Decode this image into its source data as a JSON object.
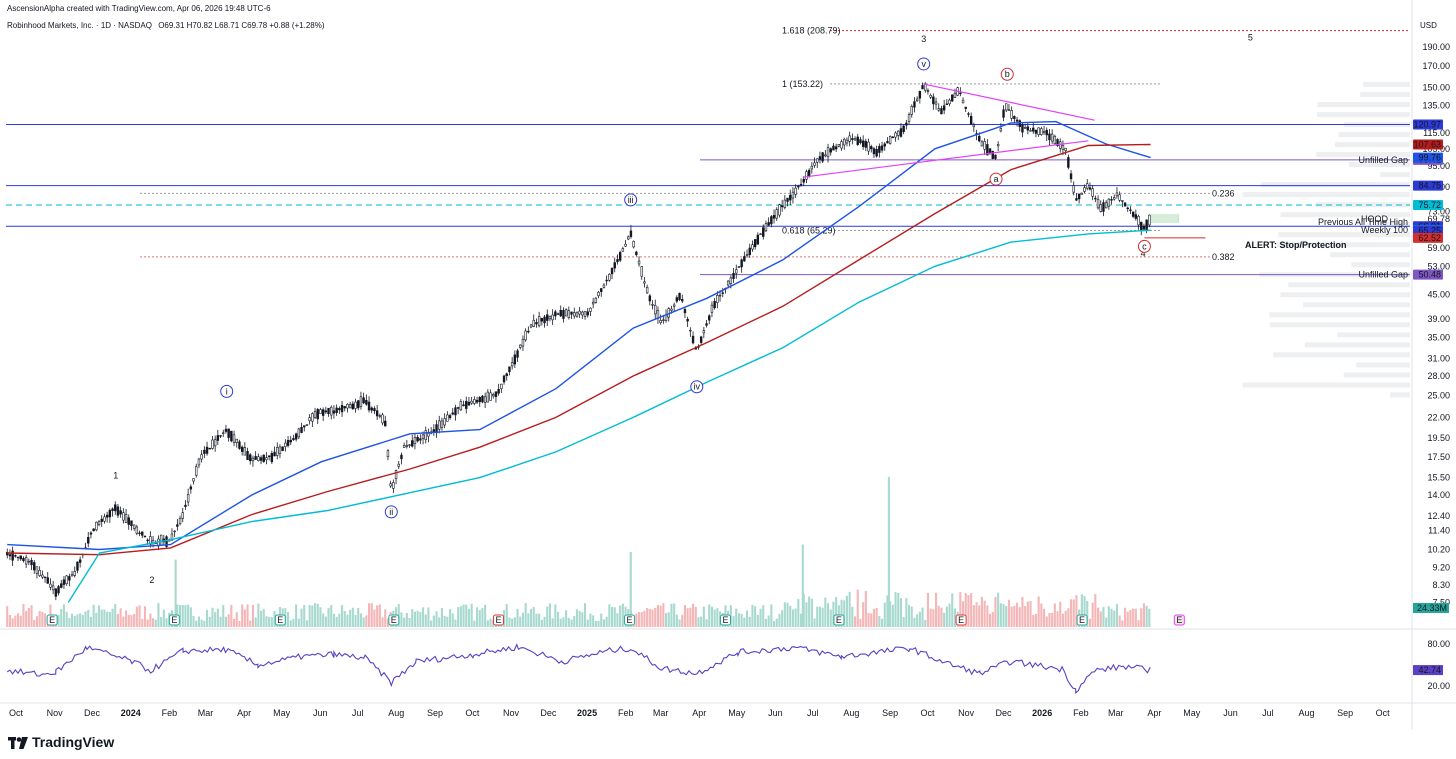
{
  "header": {
    "creator": "AscensionAlpha created with TradingView.com, Apr 06, 2026 19:48 UTC-6",
    "symbol_line": "Robinhood Markets, Inc. · 1D · NASDAQ",
    "ohlc": "O69.31 H70.82 L68.71 C69.78 +0.88 (+1.28%)",
    "currency": "USD"
  },
  "footer": {
    "brand": "TradingView"
  },
  "colors": {
    "candle": "#131722",
    "sma_blue": "#1e53e5",
    "sma_red": "#b71c1c",
    "sma_teal": "#00bcd4",
    "rsi": "#5b3fc4",
    "hline": "#2c3ad6",
    "gap": "#7e57c2",
    "magenta": "#e040fb",
    "alert": "#d32f2f",
    "vol_up": "#a8d9cf",
    "vol_down": "#f4b6b6"
  },
  "chart_data": {
    "type": "candlestick",
    "title": "Robinhood Markets, Inc. · 1D · NASDAQ (HOOD)",
    "y_scale": "log",
    "ylim": [
      6.5,
      230
    ],
    "x_range": [
      "2023-10-01",
      "2026-10-31"
    ],
    "price_ticks": [
      "190.00",
      "170.00",
      "150.00",
      "135.00",
      "115.00",
      "105.00",
      "95.00",
      "84.00",
      "73.00",
      "69.78",
      "59.00",
      "53.00",
      "45.00",
      "39.00",
      "35.00",
      "31.00",
      "28.00",
      "25.00",
      "22.00",
      "19.50",
      "17.50",
      "15.50",
      "14.00",
      "12.40",
      "11.40",
      "10.20",
      "9.20",
      "8.30",
      "7.50"
    ],
    "time_ticks": [
      "Oct",
      "Nov",
      "Dec",
      "2024",
      "Feb",
      "Mar",
      "Apr",
      "May",
      "Jun",
      "Jul",
      "Aug",
      "Sep",
      "Oct",
      "Nov",
      "Dec",
      "2025",
      "Feb",
      "Mar",
      "Apr",
      "May",
      "Jun",
      "Jul",
      "Aug",
      "Sep",
      "Oct",
      "Nov",
      "Dec",
      "2026",
      "Feb",
      "Mar",
      "Apr",
      "May",
      "Jun",
      "Jul",
      "Aug",
      "Sep",
      "Oct"
    ],
    "price_path": [
      {
        "t": "2023-10-02",
        "v": 10.0
      },
      {
        "t": "2023-10-20",
        "v": 9.5
      },
      {
        "t": "2023-11-02",
        "v": 8.6
      },
      {
        "t": "2023-11-10",
        "v": 8.0
      },
      {
        "t": "2023-11-25",
        "v": 8.9
      },
      {
        "t": "2023-12-10",
        "v": 11.5
      },
      {
        "t": "2023-12-28",
        "v": 13.0
      },
      {
        "t": "2024-01-12",
        "v": 11.6
      },
      {
        "t": "2024-01-26",
        "v": 10.6
      },
      {
        "t": "2024-02-10",
        "v": 10.8
      },
      {
        "t": "2024-02-20",
        "v": 12.5
      },
      {
        "t": "2024-03-05",
        "v": 17.5
      },
      {
        "t": "2024-03-26",
        "v": 20.5
      },
      {
        "t": "2024-04-15",
        "v": 17.2
      },
      {
        "t": "2024-05-01",
        "v": 17.5
      },
      {
        "t": "2024-05-20",
        "v": 19.5
      },
      {
        "t": "2024-06-05",
        "v": 22.5
      },
      {
        "t": "2024-06-25",
        "v": 23.0
      },
      {
        "t": "2024-07-15",
        "v": 24.2
      },
      {
        "t": "2024-07-31",
        "v": 21.5
      },
      {
        "t": "2024-08-05",
        "v": 14.2
      },
      {
        "t": "2024-08-15",
        "v": 18.5
      },
      {
        "t": "2024-09-05",
        "v": 20.0
      },
      {
        "t": "2024-09-30",
        "v": 23.5
      },
      {
        "t": "2024-10-20",
        "v": 24.5
      },
      {
        "t": "2024-10-30",
        "v": 25.5
      },
      {
        "t": "2024-11-05",
        "v": 28.0
      },
      {
        "t": "2024-11-25",
        "v": 37.5
      },
      {
        "t": "2024-12-15",
        "v": 40.0
      },
      {
        "t": "2025-01-10",
        "v": 40.5
      },
      {
        "t": "2025-01-30",
        "v": 52.0
      },
      {
        "t": "2025-02-13",
        "v": 64.0
      },
      {
        "t": "2025-02-28",
        "v": 44.0
      },
      {
        "t": "2025-03-10",
        "v": 38.0
      },
      {
        "t": "2025-03-25",
        "v": 45.0
      },
      {
        "t": "2025-04-07",
        "v": 32.0
      },
      {
        "t": "2025-04-20",
        "v": 42.0
      },
      {
        "t": "2025-05-10",
        "v": 52.0
      },
      {
        "t": "2025-05-30",
        "v": 65.0
      },
      {
        "t": "2025-06-25",
        "v": 82.0
      },
      {
        "t": "2025-07-15",
        "v": 100.0
      },
      {
        "t": "2025-08-10",
        "v": 112.0
      },
      {
        "t": "2025-08-30",
        "v": 103.0
      },
      {
        "t": "2025-09-20",
        "v": 118.0
      },
      {
        "t": "2025-10-06",
        "v": 152.0
      },
      {
        "t": "2025-10-20",
        "v": 130.0
      },
      {
        "t": "2025-11-03",
        "v": 148.0
      },
      {
        "t": "2025-11-20",
        "v": 110.0
      },
      {
        "t": "2025-12-03",
        "v": 100.0
      },
      {
        "t": "2025-12-10",
        "v": 135.0
      },
      {
        "t": "2025-12-25",
        "v": 118.0
      },
      {
        "t": "2026-01-12",
        "v": 115.0
      },
      {
        "t": "2026-01-28",
        "v": 105.0
      },
      {
        "t": "2026-02-05",
        "v": 78.0
      },
      {
        "t": "2026-02-15",
        "v": 85.0
      },
      {
        "t": "2026-02-25",
        "v": 74.0
      },
      {
        "t": "2026-03-10",
        "v": 80.0
      },
      {
        "t": "2026-03-25",
        "v": 71.0
      },
      {
        "t": "2026-03-31",
        "v": 66.0
      },
      {
        "t": "2026-04-06",
        "v": 69.78
      }
    ],
    "moving_averages": [
      {
        "name": "SMA blue",
        "color_key": "sma_blue",
        "points": [
          {
            "t": "2023-10-02",
            "v": 10.5
          },
          {
            "t": "2023-12-15",
            "v": 10.2
          },
          {
            "t": "2024-02-10",
            "v": 10.5
          },
          {
            "t": "2024-04-15",
            "v": 14.0
          },
          {
            "t": "2024-06-10",
            "v": 17.0
          },
          {
            "t": "2024-08-20",
            "v": 20.0
          },
          {
            "t": "2024-10-15",
            "v": 20.5
          },
          {
            "t": "2024-12-15",
            "v": 26.0
          },
          {
            "t": "2025-02-15",
            "v": 37.0
          },
          {
            "t": "2025-04-15",
            "v": 44.0
          },
          {
            "t": "2025-06-15",
            "v": 55.0
          },
          {
            "t": "2025-08-15",
            "v": 75.0
          },
          {
            "t": "2025-10-15",
            "v": 105.0
          },
          {
            "t": "2025-12-15",
            "v": 122.0
          },
          {
            "t": "2026-01-20",
            "v": 123.0
          },
          {
            "t": "2026-03-01",
            "v": 108.0
          },
          {
            "t": "2026-04-06",
            "v": 99.76
          }
        ]
      },
      {
        "name": "SMA red",
        "color_key": "sma_red",
        "points": [
          {
            "t": "2023-10-02",
            "v": 10.0
          },
          {
            "t": "2023-12-15",
            "v": 9.9
          },
          {
            "t": "2024-02-10",
            "v": 10.3
          },
          {
            "t": "2024-04-15",
            "v": 12.5
          },
          {
            "t": "2024-06-15",
            "v": 14.3
          },
          {
            "t": "2024-08-20",
            "v": 16.3
          },
          {
            "t": "2024-10-15",
            "v": 18.5
          },
          {
            "t": "2024-12-15",
            "v": 22.0
          },
          {
            "t": "2025-02-15",
            "v": 28.0
          },
          {
            "t": "2025-04-15",
            "v": 34.0
          },
          {
            "t": "2025-06-15",
            "v": 42.0
          },
          {
            "t": "2025-08-15",
            "v": 55.0
          },
          {
            "t": "2025-10-15",
            "v": 72.0
          },
          {
            "t": "2025-12-15",
            "v": 93.0
          },
          {
            "t": "2026-02-15",
            "v": 107.0
          },
          {
            "t": "2026-04-06",
            "v": 107.63
          }
        ]
      },
      {
        "name": "Weekly 100",
        "color_key": "sma_teal",
        "points": [
          {
            "t": "2023-11-20",
            "v": 7.5
          },
          {
            "t": "2023-12-15",
            "v": 10.0
          },
          {
            "t": "2024-02-10",
            "v": 10.8
          },
          {
            "t": "2024-04-15",
            "v": 12.0
          },
          {
            "t": "2024-06-15",
            "v": 12.8
          },
          {
            "t": "2024-08-20",
            "v": 14.2
          },
          {
            "t": "2024-10-15",
            "v": 15.5
          },
          {
            "t": "2024-12-15",
            "v": 18.0
          },
          {
            "t": "2025-02-15",
            "v": 22.0
          },
          {
            "t": "2025-04-15",
            "v": 27.0
          },
          {
            "t": "2025-06-15",
            "v": 33.0
          },
          {
            "t": "2025-08-15",
            "v": 43.0
          },
          {
            "t": "2025-10-15",
            "v": 53.0
          },
          {
            "t": "2025-12-15",
            "v": 61.0
          },
          {
            "t": "2026-02-15",
            "v": 64.0
          },
          {
            "t": "2026-04-06",
            "v": 65.39
          }
        ]
      }
    ],
    "horizontal_lines": [
      {
        "value": 120.97,
        "label": "120.97",
        "color_key": "hline",
        "style": "solid"
      },
      {
        "value": 84.75,
        "label": "84.75",
        "color_key": "hline",
        "style": "solid"
      },
      {
        "value": 66.91,
        "label": "66.91",
        "color_key": "hline",
        "style": "solid"
      },
      {
        "value": 75.72,
        "label": "75.72",
        "color_key": "sma_teal",
        "style": "dashed"
      },
      {
        "value": 98.41,
        "label": "98.41",
        "color_key": "gap",
        "style": "solid",
        "text": "Unfilled Gap"
      },
      {
        "value": 50.48,
        "label": "50.48",
        "color_key": "gap",
        "style": "solid",
        "text": "Unfilled Gap"
      }
    ],
    "fib_levels": [
      {
        "label": "1.618 (208.79)",
        "value": 208.79
      },
      {
        "label": "1 (153.22)",
        "value": 153.22
      },
      {
        "label": "0.618 (65.29)",
        "value": 65.29
      },
      {
        "label": "0.236",
        "value": 81.0
      },
      {
        "label": "0.382",
        "value": 56.0
      }
    ],
    "price_labels": [
      {
        "text": "107.63",
        "value": 107.63,
        "color_key": "sma_red"
      },
      {
        "text": "99.76",
        "value": 99.76,
        "color_key": "sma_blue"
      },
      {
        "text": "65.39",
        "value": 65.39,
        "color_key": "sma_teal"
      },
      {
        "text": "65.25",
        "value": 65.25,
        "color_key": "hline"
      },
      {
        "text": "62.52",
        "value": 62.52,
        "color_key": "alert"
      },
      {
        "text": "69.78",
        "value": 69.78,
        "color_key": "candle"
      }
    ],
    "annotations_text": [
      {
        "text": "Previous All Time High",
        "value": 68.5
      },
      {
        "text": "Weekly 100",
        "value": 65.4
      },
      {
        "text": "ALERT: Stop/Protection",
        "value": 60.0
      },
      {
        "text": "HOOD",
        "value": 69.78
      }
    ],
    "wave_labels": [
      {
        "text": "1",
        "t": "2023-12-28",
        "v": 15.8,
        "style": "plain",
        "color_key": "hline"
      },
      {
        "text": "2",
        "t": "2024-01-26",
        "v": 8.6,
        "style": "plain",
        "color_key": "hline"
      },
      {
        "text": "3",
        "t": "2025-10-06",
        "v": 200.0,
        "style": "plain",
        "color_key": "hline"
      },
      {
        "text": "4",
        "t": "2026-03-31",
        "v": 57.5,
        "style": "plain",
        "color_key": "hline"
      },
      {
        "text": "5",
        "t": "2026-06-25",
        "v": 202.0,
        "style": "plain",
        "color_key": "hline"
      },
      {
        "text": "i",
        "t": "2024-03-26",
        "v": 25.6,
        "style": "circle",
        "color_key": "hline"
      },
      {
        "text": "ii",
        "t": "2024-08-05",
        "v": 12.7,
        "style": "circle",
        "color_key": "hline"
      },
      {
        "text": "iii",
        "t": "2025-02-13",
        "v": 78.0,
        "style": "circle",
        "color_key": "hline"
      },
      {
        "text": "iv",
        "t": "2025-04-07",
        "v": 26.3,
        "style": "circle",
        "color_key": "hline"
      },
      {
        "text": "v",
        "t": "2025-10-06",
        "v": 172.0,
        "style": "circle",
        "color_key": "hline"
      },
      {
        "text": "a",
        "t": "2025-12-03",
        "v": 88.0,
        "style": "circle",
        "color_key": "alert"
      },
      {
        "text": "b",
        "t": "2025-12-12",
        "v": 162.0,
        "style": "circle",
        "color_key": "alert"
      },
      {
        "text": "c",
        "t": "2026-04-01",
        "v": 59.5,
        "style": "circle",
        "color_key": "alert"
      }
    ],
    "earnings_markers": [
      {
        "t": "2023-11-07",
        "text": "E",
        "kind": "past_up"
      },
      {
        "t": "2024-02-13",
        "text": "E",
        "kind": "past_up"
      },
      {
        "t": "2024-05-08",
        "text": "E",
        "kind": "past_up"
      },
      {
        "t": "2024-08-07",
        "text": "E",
        "kind": "past_up"
      },
      {
        "t": "2024-10-30",
        "text": "E",
        "kind": "past_down"
      },
      {
        "t": "2025-02-12",
        "text": "E",
        "kind": "past_up"
      },
      {
        "t": "2025-04-30",
        "text": "E",
        "kind": "past_up"
      },
      {
        "t": "2025-07-30",
        "text": "E",
        "kind": "past_up"
      },
      {
        "t": "2025-11-05",
        "text": "E",
        "kind": "past_down"
      },
      {
        "t": "2026-02-10",
        "text": "E",
        "kind": "past_up"
      },
      {
        "t": "2026-04-29",
        "text": "E",
        "kind": "future"
      }
    ],
    "volume": {
      "last_label": "24.33M",
      "spikes": [
        {
          "t": "2025-09-08",
          "v": 1.0
        },
        {
          "t": "2025-07-01",
          "v": 0.55
        },
        {
          "t": "2024-02-14",
          "v": 0.45
        },
        {
          "t": "2025-02-13",
          "v": 0.5
        }
      ]
    },
    "rsi": {
      "ticks": [
        "80.00",
        "20.00"
      ],
      "last_label": "42.74",
      "values": [
        {
          "t": "2023-10-02",
          "v": 42
        },
        {
          "t": "2023-10-30",
          "v": 36
        },
        {
          "t": "2023-11-10",
          "v": 40
        },
        {
          "t": "2023-12-05",
          "v": 75
        },
        {
          "t": "2024-01-10",
          "v": 55
        },
        {
          "t": "2024-01-25",
          "v": 42
        },
        {
          "t": "2024-02-20",
          "v": 70
        },
        {
          "t": "2024-03-25",
          "v": 72
        },
        {
          "t": "2024-04-20",
          "v": 50
        },
        {
          "t": "2024-05-25",
          "v": 62
        },
        {
          "t": "2024-06-20",
          "v": 65
        },
        {
          "t": "2024-07-15",
          "v": 60
        },
        {
          "t": "2024-08-05",
          "v": 25
        },
        {
          "t": "2024-08-25",
          "v": 55
        },
        {
          "t": "2024-10-10",
          "v": 65
        },
        {
          "t": "2024-11-15",
          "v": 76
        },
        {
          "t": "2024-12-20",
          "v": 55
        },
        {
          "t": "2025-01-25",
          "v": 70
        },
        {
          "t": "2025-02-13",
          "v": 74
        },
        {
          "t": "2025-03-10",
          "v": 45
        },
        {
          "t": "2025-04-07",
          "v": 38
        },
        {
          "t": "2025-05-10",
          "v": 68
        },
        {
          "t": "2025-06-25",
          "v": 75
        },
        {
          "t": "2025-08-01",
          "v": 62
        },
        {
          "t": "2025-09-25",
          "v": 74
        },
        {
          "t": "2025-10-25",
          "v": 52
        },
        {
          "t": "2025-11-20",
          "v": 38
        },
        {
          "t": "2025-12-15",
          "v": 55
        },
        {
          "t": "2026-01-25",
          "v": 44
        },
        {
          "t": "2026-02-05",
          "v": 14
        },
        {
          "t": "2026-02-20",
          "v": 42
        },
        {
          "t": "2026-03-15",
          "v": 48
        },
        {
          "t": "2026-04-06",
          "v": 42.74
        }
      ]
    }
  }
}
